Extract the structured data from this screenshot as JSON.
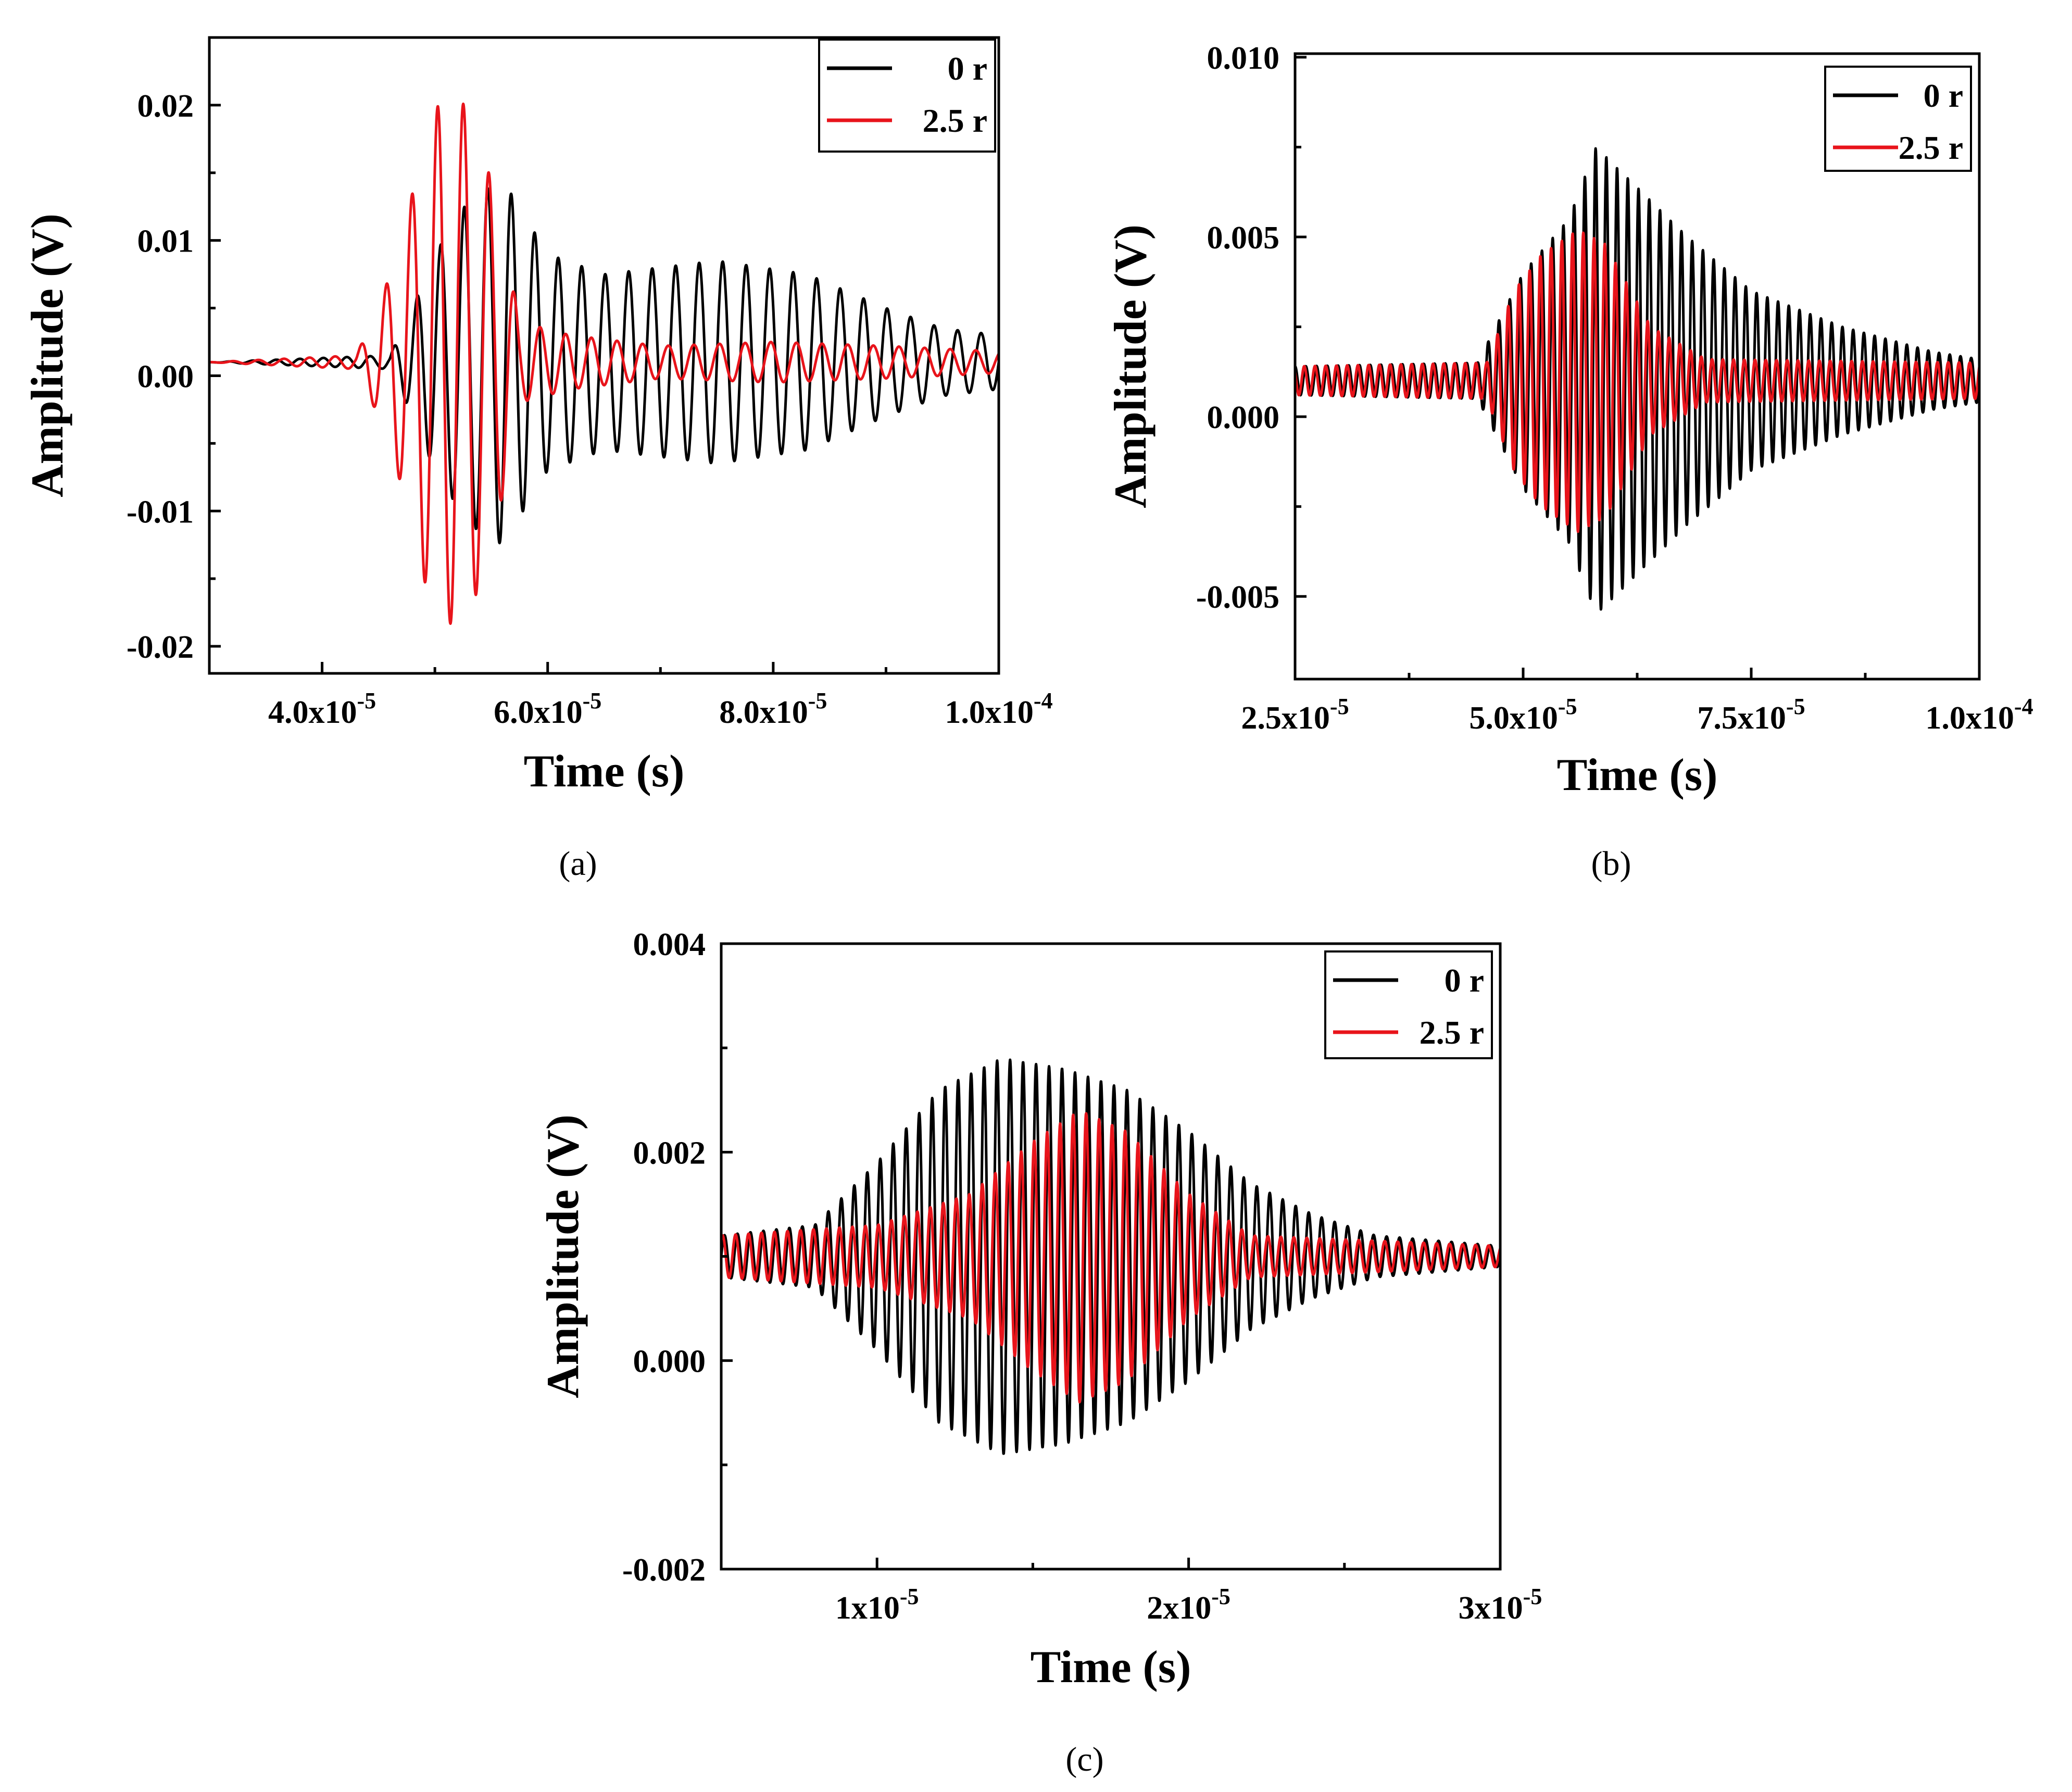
{
  "chart_data": [
    {
      "type": "line",
      "panel_label": "(a)",
      "xlabel": "Time (s)",
      "ylabel": "Amplitude (V)",
      "xlim": [
        3e-05,
        0.0001
      ],
      "ylim": [
        -0.022,
        0.025
      ],
      "x_ticks": [
        4e-05,
        6e-05,
        8e-05,
        0.0001
      ],
      "x_tick_labels": [
        {
          "mantissa": "4.0x10",
          "exp": "-5"
        },
        {
          "mantissa": "6.0x10",
          "exp": "-5"
        },
        {
          "mantissa": "8.0x10",
          "exp": "-5"
        },
        {
          "mantissa": "1.0x10",
          "exp": "-4"
        }
      ],
      "y_ticks": [
        -0.02,
        -0.01,
        0.0,
        0.01,
        0.02
      ],
      "y_tick_labels": [
        "-0.02",
        "-0.01",
        "0.00",
        "0.01",
        "0.02"
      ],
      "legend": {
        "position": "top-right"
      },
      "series": [
        {
          "name": "0 r",
          "color": "#000000",
          "baseline": 0.001,
          "envelope": [
            [
              3e-05,
              0.0
            ],
            [
              4.6e-05,
              0.0005
            ],
            [
              4.8e-05,
              0.004
            ],
            [
              5e-05,
              0.008
            ],
            [
              5.3e-05,
              0.012
            ],
            [
              5.6e-05,
              0.0135
            ],
            [
              6e-05,
              0.008
            ],
            [
              6.5e-05,
              0.0065
            ],
            [
              7.5e-05,
              0.0075
            ],
            [
              8.3e-05,
              0.0065
            ],
            [
              9e-05,
              0.004
            ],
            [
              9.5e-05,
              0.0025
            ],
            [
              0.0001,
              0.002
            ]
          ],
          "frequency_hz": 480000
        },
        {
          "name": "2.5 r",
          "color": "#e8141b",
          "baseline": 0.001,
          "envelope": [
            [
              3e-05,
              0.0
            ],
            [
              4.3e-05,
              0.0005
            ],
            [
              4.5e-05,
              0.004
            ],
            [
              4.7e-05,
              0.009
            ],
            [
              4.9e-05,
              0.016
            ],
            [
              5.05e-05,
              0.0195
            ],
            [
              5.3e-05,
              0.019
            ],
            [
              5.55e-05,
              0.012
            ],
            [
              5.75e-05,
              0.003
            ],
            [
              6.2e-05,
              0.002
            ],
            [
              7e-05,
              0.0012
            ],
            [
              8e-05,
              0.0015
            ],
            [
              9e-05,
              0.0012
            ],
            [
              0.0001,
              0.0008
            ]
          ],
          "frequency_hz": 440000
        }
      ]
    },
    {
      "type": "line",
      "panel_label": "(b)",
      "xlabel": "Time (s)",
      "ylabel": "Amplitude (V)",
      "xlim": [
        2.5e-05,
        0.0001
      ],
      "ylim": [
        -0.0073,
        0.0101
      ],
      "x_ticks": [
        2.5e-05,
        5e-05,
        7.5e-05,
        0.0001
      ],
      "x_tick_labels": [
        {
          "mantissa": "2.5x10",
          "exp": "-5"
        },
        {
          "mantissa": "5.0x10",
          "exp": "-5"
        },
        {
          "mantissa": "7.5x10",
          "exp": "-5"
        },
        {
          "mantissa": "1.0x10",
          "exp": "-4"
        }
      ],
      "y_ticks": [
        -0.005,
        0.0,
        0.005,
        0.01
      ],
      "y_tick_labels": [
        "-0.005",
        "0.000",
        "0.005",
        "0.010"
      ],
      "legend": {
        "position": "top-right"
      },
      "series": [
        {
          "name": "0 r",
          "color": "#000000",
          "baseline": 0.001,
          "envelope": [
            [
              2.5e-05,
              0.0004
            ],
            [
              4.5e-05,
              0.0005
            ],
            [
              5e-05,
              0.003
            ],
            [
              5.5e-05,
              0.0045
            ],
            [
              5.8e-05,
              0.0065
            ],
            [
              6.2e-05,
              0.0055
            ],
            [
              6.8e-05,
              0.004
            ],
            [
              7.5e-05,
              0.0025
            ],
            [
              8.5e-05,
              0.0015
            ],
            [
              9.5e-05,
              0.0008
            ],
            [
              0.0001,
              0.0006
            ]
          ],
          "frequency_hz": 850000
        },
        {
          "name": "2.5 r",
          "color": "#e8141b",
          "baseline": 0.001,
          "envelope": [
            [
              2.5e-05,
              0.0004
            ],
            [
              4.6e-05,
              0.0005
            ],
            [
              4.9e-05,
              0.0025
            ],
            [
              5.2e-05,
              0.0035
            ],
            [
              5.6e-05,
              0.0042
            ],
            [
              5.9e-05,
              0.0038
            ],
            [
              6.4e-05,
              0.0015
            ],
            [
              7e-05,
              0.0006
            ],
            [
              0.0001,
              0.0005
            ]
          ],
          "frequency_hz": 850000
        }
      ]
    },
    {
      "type": "line",
      "panel_label": "(c)",
      "xlabel": "Time (s)",
      "ylabel": "Amplitude (V)",
      "xlim": [
        5e-06,
        3e-05
      ],
      "ylim": [
        -0.002,
        0.004
      ],
      "x_ticks": [
        1e-05,
        2e-05,
        3e-05
      ],
      "x_tick_labels": [
        {
          "mantissa": "1x10",
          "exp": "-5"
        },
        {
          "mantissa": "2x10",
          "exp": "-5"
        },
        {
          "mantissa": "3x10",
          "exp": "-5"
        }
      ],
      "y_ticks": [
        -0.002,
        0.0,
        0.002,
        0.004
      ],
      "y_tick_labels": [
        "-0.002",
        "0.000",
        "0.002",
        "0.004"
      ],
      "legend": {
        "position": "top-right"
      },
      "series": [
        {
          "name": "0 r",
          "color": "#000000",
          "baseline": 0.001,
          "envelope": [
            [
              5e-06,
              0.0002
            ],
            [
              8e-06,
              0.0003
            ],
            [
              1e-05,
              0.0009
            ],
            [
              1.2e-05,
              0.0016
            ],
            [
              1.4e-05,
              0.0019
            ],
            [
              1.6e-05,
              0.0018
            ],
            [
              1.8e-05,
              0.0016
            ],
            [
              2e-05,
              0.0012
            ],
            [
              2.2e-05,
              0.0007
            ],
            [
              2.4e-05,
              0.0004
            ],
            [
              2.6e-05,
              0.0002
            ],
            [
              3e-05,
              0.0001
            ]
          ],
          "frequency_hz": 2400000
        },
        {
          "name": "2.5 r",
          "color": "#e8141b",
          "baseline": 0.001,
          "envelope": [
            [
              5e-06,
              0.0002
            ],
            [
              1e-05,
              0.0003
            ],
            [
              1.3e-05,
              0.0006
            ],
            [
              1.5e-05,
              0.0011
            ],
            [
              1.65e-05,
              0.0014
            ],
            [
              1.8e-05,
              0.0012
            ],
            [
              2e-05,
              0.0006
            ],
            [
              2.2e-05,
              0.0002
            ],
            [
              3e-05,
              0.0001
            ]
          ],
          "frequency_hz": 2400000
        }
      ]
    }
  ]
}
